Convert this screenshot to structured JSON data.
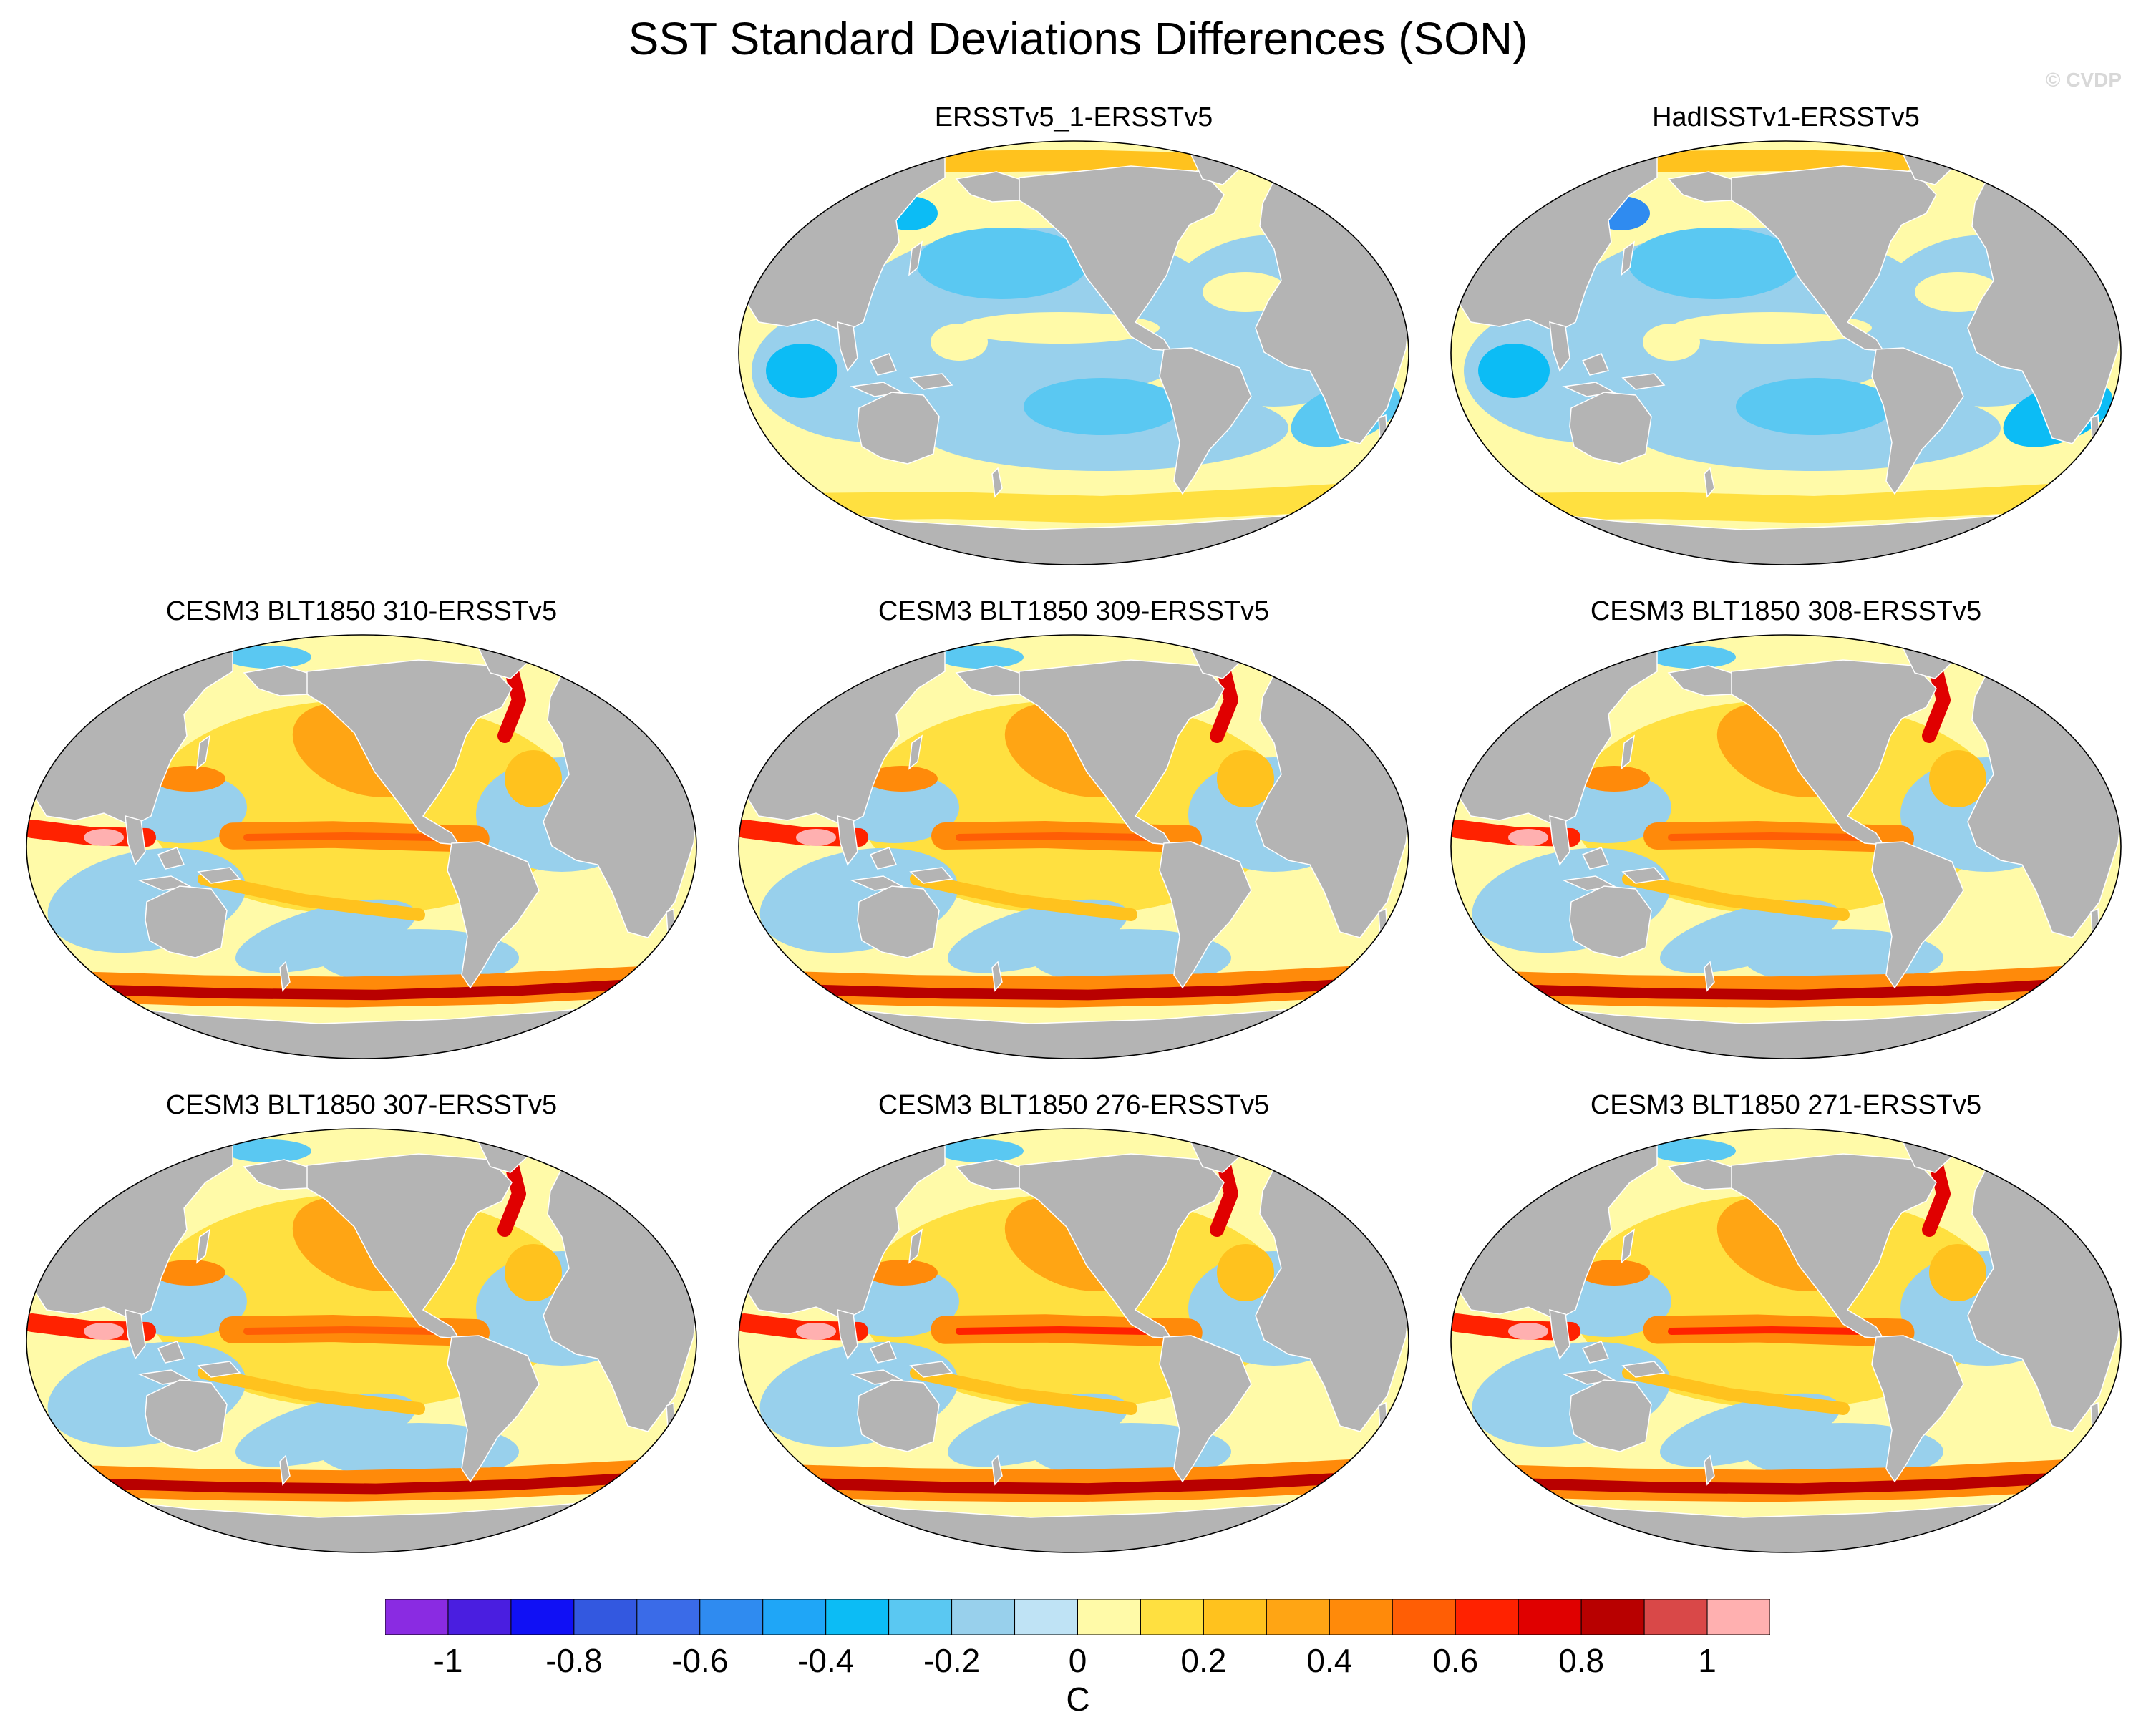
{
  "figure": {
    "title": "SST Standard Deviations Differences (SON)",
    "watermark": "© CVDP",
    "units": "C",
    "colors": {
      "land": "#b4b4b4",
      "ocean_base": "#fff8a8",
      "outline": "#000000"
    }
  },
  "chart_data": {
    "type": "heatmap",
    "projection": "Robinson (global map panels)",
    "variable": "SST standard deviation difference",
    "season": "SON",
    "units": "C",
    "color_scale": {
      "levels": [
        -1,
        -0.9,
        -0.8,
        -0.7,
        -0.6,
        -0.5,
        -0.4,
        -0.3,
        -0.2,
        -0.1,
        0,
        0.1,
        0.2,
        0.3,
        0.4,
        0.5,
        0.6,
        0.7,
        0.8,
        0.9,
        1
      ],
      "colors": [
        "#8a2be2",
        "#4a1ee0",
        "#1010f5",
        "#3358e0",
        "#3a6be8",
        "#2f8bf0",
        "#1fa6f7",
        "#0cbcf5",
        "#5ac8f2",
        "#98d0ec",
        "#bfe3f5",
        "#fffaa8",
        "#ffe040",
        "#ffc21e",
        "#ffa514",
        "#ff8a0a",
        "#ff5e05",
        "#ff2200",
        "#e00000",
        "#b80000",
        "#d94848",
        "#ffb0b0"
      ],
      "tick_labels": [
        "-1",
        "-0.8",
        "-0.6",
        "-0.4",
        "-0.2",
        "0",
        "0.2",
        "0.4",
        "0.6",
        "0.8",
        "1"
      ]
    },
    "panels": [
      {
        "title": "ERSSTv5_1-ERSSTv5",
        "pattern": "obs",
        "intensity": 0.35,
        "bias": "negative"
      },
      {
        "title": "HadISSTv1-ERSSTv5",
        "pattern": "obs",
        "intensity": 0.55,
        "bias": "negative"
      },
      {
        "title": "CESM3 BLT1850 310-ERSSTv5",
        "pattern": "model",
        "intensity": 0.75,
        "bias": "positive"
      },
      {
        "title": "CESM3 BLT1850 309-ERSSTv5",
        "pattern": "model",
        "intensity": 0.8,
        "bias": "positive"
      },
      {
        "title": "CESM3 BLT1850 308-ERSSTv5",
        "pattern": "model",
        "intensity": 0.8,
        "bias": "positive"
      },
      {
        "title": "CESM3 BLT1850 307-ERSSTv5",
        "pattern": "model",
        "intensity": 0.8,
        "bias": "positive"
      },
      {
        "title": "CESM3 BLT1850 276-ERSSTv5",
        "pattern": "model",
        "intensity": 0.95,
        "bias": "positive"
      },
      {
        "title": "CESM3 BLT1850 271-ERSSTv5",
        "pattern": "model",
        "intensity": 0.9,
        "bias": "positive"
      }
    ]
  }
}
